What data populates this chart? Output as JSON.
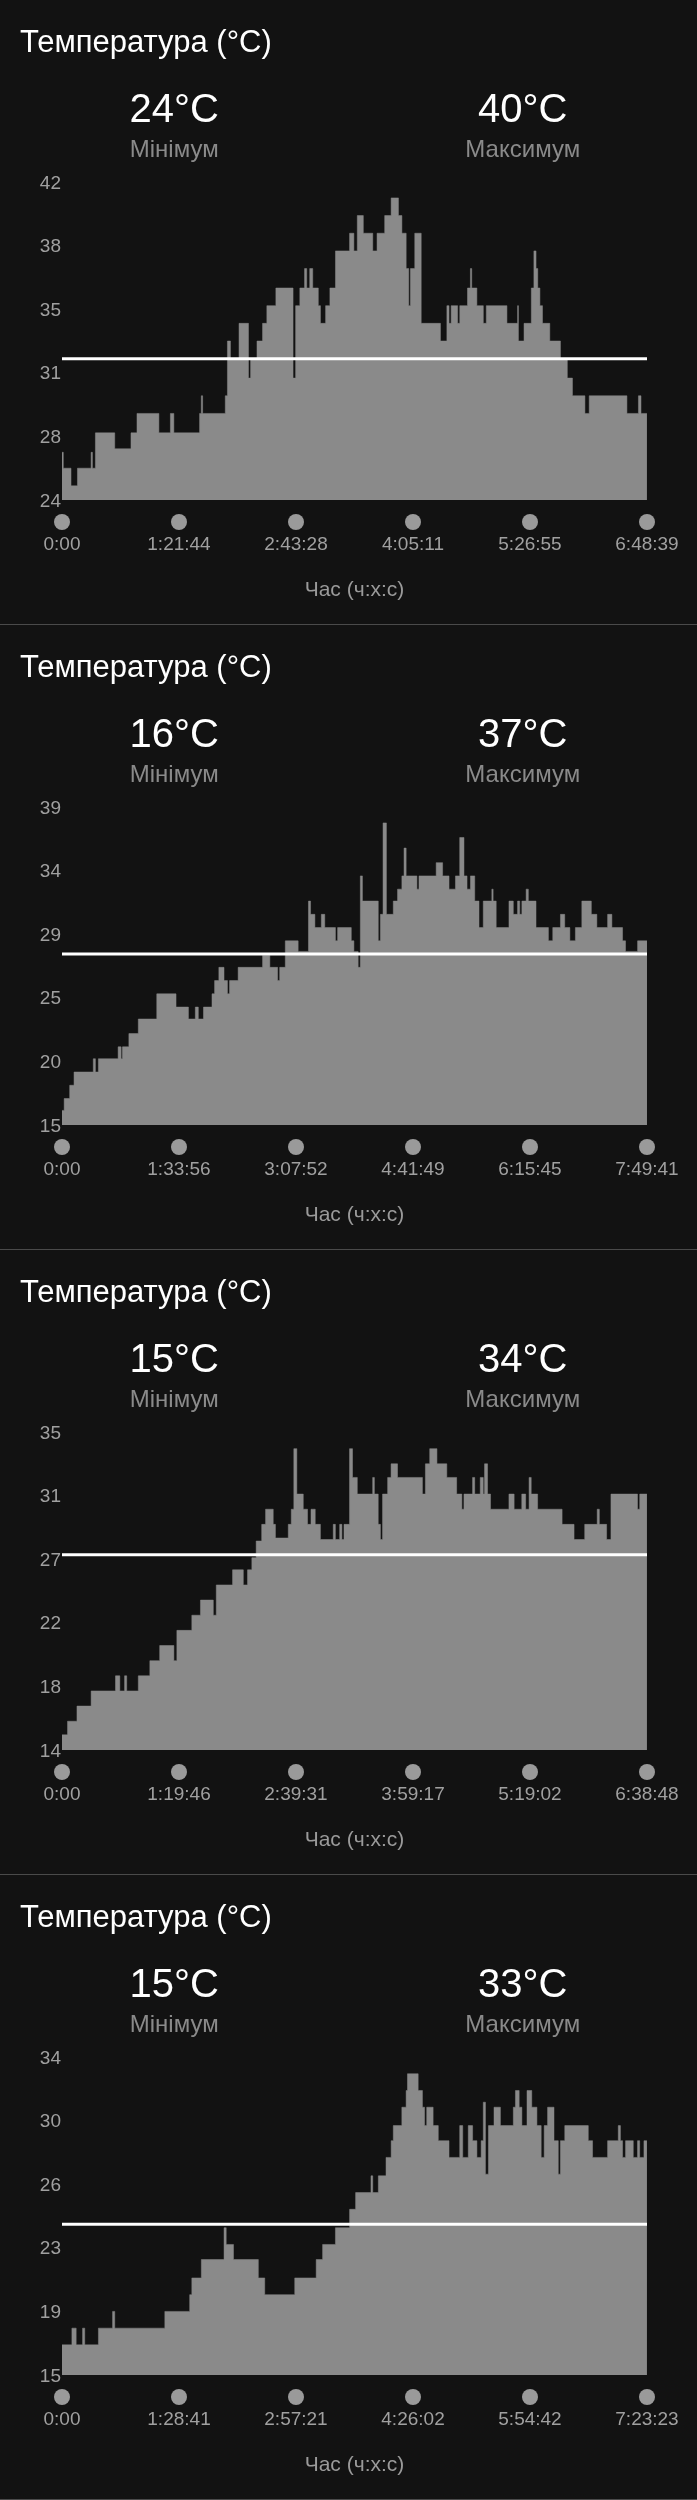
{
  "chart_data": [
    {
      "type": "area",
      "title": "Температура (°C)",
      "xlabel": "Час (ч:х:с)",
      "annotations": [
        "24°C",
        "Мінімум",
        "40°C",
        "Максимум"
      ],
      "xlim": [
        0,
        6.8108
      ],
      "xticks": [
        {
          "value": 0,
          "label": "0:00"
        },
        {
          "value": 1.3622,
          "label": "1:21:44"
        },
        {
          "value": 2.7244,
          "label": "2:43:28"
        },
        {
          "value": 4.0864,
          "label": "4:05:11"
        },
        {
          "value": 5.4486,
          "label": "5:26:55"
        },
        {
          "value": 6.8108,
          "label": "6:48:39"
        }
      ],
      "ylim": [
        24,
        42
      ],
      "yticks": [
        24,
        {
          "value": 27.6,
          "label": "28"
        },
        {
          "value": 31.2,
          "label": "31"
        },
        {
          "value": 34.8,
          "label": "35"
        },
        {
          "value": 38.4,
          "label": "38"
        },
        42
      ],
      "ref_lines": [
        {
          "axis": "y",
          "value": 32,
          "color": "#ffffff"
        }
      ],
      "series": [
        {
          "color": "#8a8a8a",
          "x": [
            0,
            0.015,
            0.015,
            0.105,
            0.105,
            0.18,
            0.18,
            0.339,
            0.339,
            0.354,
            0.354,
            0.389,
            0.389,
            0.614,
            0.614,
            0.803,
            0.803,
            0.873,
            0.873,
            1.128,
            1.128,
            1.262,
            1.262,
            1.302,
            1.302,
            1.602,
            1.602,
            1.622,
            1.622,
            1.637,
            1.637,
            1.901,
            1.901,
            1.926,
            1.926,
            1.961,
            1.961,
            2.061,
            2.061,
            2.171,
            2.171,
            2.196,
            2.196,
            2.27,
            2.27,
            2.335,
            2.335,
            2.385,
            2.385,
            2.49,
            2.49,
            2.69,
            2.69,
            2.72,
            2.72,
            2.769,
            2.769,
            2.824,
            2.824,
            2.849,
            2.849,
            2.884,
            2.884,
            2.919,
            2.919,
            2.984,
            2.984,
            3.009,
            3.009,
            3.069,
            3.069,
            3.119,
            3.119,
            3.184,
            3.184,
            3.348,
            3.348,
            3.398,
            3.398,
            3.438,
            3.438,
            3.508,
            3.508,
            3.618,
            3.618,
            3.668,
            3.668,
            3.757,
            3.757,
            3.832,
            3.832,
            3.917,
            3.917,
            3.957,
            3.957,
            4.007,
            4.007,
            4.037,
            4.037,
            4.057,
            4.057,
            4.107,
            4.107,
            4.182,
            4.182,
            4.406,
            4.406,
            4.481,
            4.481,
            4.506,
            4.506,
            4.531,
            4.531,
            4.606,
            4.606,
            4.631,
            4.631,
            4.721,
            4.721,
            4.755,
            4.755,
            4.77,
            4.77,
            4.83,
            4.83,
            4.905,
            4.905,
            4.94,
            4.94,
            5.18,
            5.18,
            5.304,
            5.304,
            5.314,
            5.314,
            5.379,
            5.379,
            5.464,
            5.464,
            5.494,
            5.494,
            5.519,
            5.519,
            5.539,
            5.539,
            5.564,
            5.564,
            5.594,
            5.594,
            5.679,
            5.679,
            5.803,
            5.803,
            5.883,
            5.883,
            5.943,
            5.943,
            6.088,
            6.088,
            6.138,
            6.138,
            6.577,
            6.577,
            6.711,
            6.711,
            6.741,
            6.741,
            6.81,
            6.81
          ],
          "values": [
            26.7,
            26.7,
            25.8,
            25.8,
            24.8,
            24.8,
            25.8,
            25.8,
            26.7,
            26.7,
            25.8,
            25.8,
            27.8,
            27.8,
            26.9,
            26.9,
            27.8,
            27.8,
            28.9,
            28.9,
            27.8,
            27.8,
            28.9,
            28.9,
            27.8,
            27.8,
            28.9,
            28.9,
            29.9,
            29.9,
            28.9,
            28.9,
            29.9,
            29.9,
            33,
            33,
            32,
            32,
            34,
            34,
            30.9,
            30.9,
            32,
            32,
            33,
            33,
            34,
            34,
            35,
            35,
            36,
            36,
            30.9,
            30.9,
            35,
            35,
            36,
            36,
            37.1,
            37.1,
            36,
            36,
            37.1,
            37.1,
            36,
            36,
            35,
            35,
            34,
            34,
            35,
            35,
            36,
            36,
            38.1,
            38.1,
            39.1,
            39.1,
            38.1,
            38.1,
            40.1,
            40.1,
            39.1,
            39.1,
            38.1,
            38.1,
            39.1,
            39.1,
            40.1,
            40.1,
            41.1,
            41.1,
            40.1,
            40.1,
            39.1,
            39.1,
            37.1,
            37.1,
            35,
            35,
            37.1,
            37.1,
            39.1,
            39.1,
            34,
            34,
            33,
            33,
            35,
            35,
            34,
            34,
            35,
            35,
            34,
            34,
            35,
            35,
            36,
            36,
            37.1,
            37.1,
            36,
            36,
            35,
            35,
            34,
            34,
            35,
            35,
            34,
            34,
            35,
            35,
            33,
            33,
            34,
            34,
            36,
            36,
            38.1,
            38.1,
            37.1,
            37.1,
            36,
            36,
            35,
            35,
            34,
            34,
            33,
            33,
            32,
            32,
            30.9,
            30.9,
            29.9,
            29.9,
            28.9,
            28.9,
            29.9,
            29.9,
            28.9,
            28.9,
            29.9,
            29.9,
            28.9,
            28.9,
            28.9
          ]
        }
      ]
    },
    {
      "type": "area",
      "title": "Температура (°C)",
      "xlabel": "Час (ч:х:с)",
      "annotations": [
        "16°C",
        "Мінімум",
        "37°C",
        "Максимум"
      ],
      "xlim": [
        0,
        7.8281
      ],
      "xticks": [
        {
          "value": 0,
          "label": "0:00"
        },
        {
          "value": 1.5656,
          "label": "1:33:56"
        },
        {
          "value": 3.1311,
          "label": "3:07:52"
        },
        {
          "value": 4.6969,
          "label": "4:41:49"
        },
        {
          "value": 6.2625,
          "label": "6:15:45"
        },
        {
          "value": 7.8281,
          "label": "7:49:41"
        }
      ],
      "ylim": [
        15,
        39
      ],
      "yticks": [
        15,
        {
          "value": 19.8,
          "label": "20"
        },
        {
          "value": 24.6,
          "label": "25"
        },
        {
          "value": 29.4,
          "label": "29"
        },
        {
          "value": 34.2,
          "label": "34"
        },
        39
      ],
      "ref_lines": [
        {
          "axis": "y",
          "value": 27.9,
          "color": "#ffffff"
        }
      ],
      "series": [
        {
          "color": "#8a8a8a",
          "x": [
            0,
            0.029,
            0.029,
            0.103,
            0.103,
            0.161,
            0.161,
            0.419,
            0.419,
            0.447,
            0.447,
            0.487,
            0.487,
            0.751,
            0.751,
            0.791,
            0.791,
            0.809,
            0.809,
            0.895,
            0.895,
            1.021,
            1.021,
            1.268,
            1.268,
            1.526,
            1.526,
            1.692,
            1.692,
            1.784,
            1.784,
            1.824,
            1.824,
            1.893,
            1.893,
            2.007,
            2.007,
            2.042,
            2.042,
            2.099,
            2.099,
            2.168,
            2.168,
            2.214,
            2.214,
            2.242,
            2.242,
            2.357,
            2.357,
            2.684,
            2.684,
            2.781,
            2.781,
            2.885,
            2.885,
            2.913,
            2.913,
            2.988,
            2.988,
            3.16,
            3.16,
            3.298,
            3.298,
            3.326,
            3.326,
            3.384,
            3.384,
            3.47,
            3.47,
            3.516,
            3.516,
            3.659,
            3.659,
            3.688,
            3.688,
            3.871,
            3.871,
            3.906,
            3.906,
            3.963,
            3.963,
            3.992,
            3.992,
            4.02,
            4.02,
            4.232,
            4.232,
            4.261,
            4.261,
            4.296,
            4.296,
            4.341,
            4.341,
            4.433,
            4.433,
            4.49,
            4.49,
            4.548,
            4.548,
            4.577,
            4.577,
            4.605,
            4.605,
            4.749,
            4.749,
            4.777,
            4.777,
            5.007,
            5.007,
            5.093,
            5.093,
            5.179,
            5.179,
            5.265,
            5.265,
            5.322,
            5.322,
            5.379,
            5.379,
            5.42,
            5.42,
            5.466,
            5.466,
            5.523,
            5.523,
            5.58,
            5.58,
            5.637,
            5.637,
            5.752,
            5.752,
            5.769,
            5.769,
            5.81,
            5.81,
            5.981,
            5.981,
            6.039,
            6.039,
            6.096,
            6.096,
            6.125,
            6.125,
            6.154,
            6.154,
            6.211,
            6.211,
            6.24,
            6.24,
            6.343,
            6.343,
            6.509,
            6.509,
            6.567,
            6.567,
            6.67,
            6.67,
            6.727,
            6.727,
            6.796,
            6.796,
            6.87,
            6.87,
            6.956,
            6.956,
            7.083,
            7.083,
            7.157,
            7.157,
            7.301,
            7.301,
            7.358,
            7.358,
            7.501,
            7.501,
            7.541,
            7.541,
            7.702,
            7.702,
            7.828,
            7.828
          ],
          "values": [
            16.1,
            16.1,
            17,
            17,
            18,
            18,
            19,
            19,
            20,
            20,
            19,
            19,
            20,
            20,
            20.9,
            20.9,
            20,
            20,
            20.9,
            20.9,
            21.9,
            21.9,
            23,
            23,
            24.9,
            24.9,
            23.9,
            23.9,
            23,
            23,
            23.9,
            23.9,
            23,
            23,
            23.9,
            23.9,
            24.9,
            24.9,
            25.9,
            25.9,
            26.9,
            26.9,
            25.9,
            25.9,
            24.9,
            24.9,
            25.9,
            25.9,
            26.9,
            26.9,
            27.8,
            27.8,
            26.9,
            26.9,
            25.9,
            25.9,
            26.9,
            26.9,
            28.9,
            28.9,
            28.1,
            28.1,
            31.9,
            31.9,
            30.9,
            30.9,
            29.9,
            29.9,
            30.9,
            30.9,
            29.9,
            29.9,
            28.9,
            28.9,
            29.9,
            29.9,
            28.9,
            28.9,
            28.1,
            28.1,
            26.9,
            26.9,
            33.8,
            33.8,
            31.9,
            31.9,
            28.9,
            28.9,
            30.9,
            30.9,
            37.8,
            37.8,
            30.9,
            30.9,
            31.9,
            31.9,
            32.8,
            32.8,
            33.8,
            33.8,
            35.9,
            35.9,
            33.8,
            33.8,
            32.8,
            32.8,
            33.8,
            33.8,
            34.8,
            34.8,
            33.8,
            33.8,
            32.8,
            32.8,
            33.8,
            33.8,
            36.7,
            36.7,
            33.8,
            33.8,
            32.8,
            32.8,
            33.8,
            33.8,
            31.9,
            31.9,
            29.9,
            29.9,
            31.9,
            31.9,
            32.8,
            32.8,
            31.9,
            31.9,
            29.9,
            29.9,
            31.9,
            31.9,
            30.9,
            30.9,
            31.9,
            31.9,
            30.9,
            30.9,
            31.9,
            31.9,
            32.8,
            32.8,
            31.9,
            31.9,
            29.9,
            29.9,
            28.9,
            28.9,
            29.9,
            29.9,
            30.9,
            30.9,
            29.9,
            29.9,
            28.9,
            28.9,
            29.9,
            29.9,
            31.9,
            31.9,
            30.9,
            30.9,
            29.9,
            29.9,
            30.9,
            30.9,
            29.9,
            29.9,
            28.9,
            28.9,
            28.1,
            28.1,
            28.9,
            28.9,
            28.9
          ]
        }
      ]
    },
    {
      "type": "area",
      "title": "Температура (°C)",
      "xlabel": "Час (ч:х:с)",
      "annotations": [
        "15°C",
        "Мінімум",
        "34°C",
        "Максимум"
      ],
      "xlim": [
        0,
        6.6467
      ],
      "xticks": [
        {
          "value": 0,
          "label": "0:00"
        },
        {
          "value": 1.3294,
          "label": "1:19:46"
        },
        {
          "value": 2.6586,
          "label": "2:39:31"
        },
        {
          "value": 3.9881,
          "label": "3:59:17"
        },
        {
          "value": 5.3172,
          "label": "5:19:02"
        },
        {
          "value": 6.6467,
          "label": "6:38:48"
        }
      ],
      "ylim": [
        14,
        35
      ],
      "yticks": [
        14,
        {
          "value": 18.2,
          "label": "18"
        },
        {
          "value": 22.4,
          "label": "22"
        },
        {
          "value": 26.6,
          "label": "27"
        },
        {
          "value": 30.8,
          "label": "31"
        },
        35
      ],
      "ref_lines": [
        {
          "axis": "y",
          "value": 26.9,
          "color": "#ffffff"
        }
      ],
      "series": [
        {
          "color": "#8a8a8a",
          "x": [
            0,
            0.063,
            0.063,
            0.17,
            0.17,
            0.331,
            0.331,
            0.608,
            0.608,
            0.657,
            0.657,
            0.711,
            0.711,
            0.735,
            0.735,
            0.867,
            0.867,
            0.998,
            0.998,
            1.11,
            1.11,
            1.271,
            1.271,
            1.305,
            1.305,
            1.475,
            1.475,
            1.573,
            1.573,
            1.719,
            1.719,
            1.753,
            1.753,
            1.938,
            1.938,
            2.06,
            2.06,
            2.108,
            2.108,
            2.157,
            2.157,
            2.206,
            2.206,
            2.269,
            2.269,
            2.313,
            2.313,
            2.4,
            2.4,
            2.425,
            2.425,
            2.571,
            2.571,
            2.605,
            2.605,
            2.634,
            2.634,
            2.668,
            2.668,
            2.741,
            2.741,
            2.79,
            2.79,
            2.829,
            2.829,
            2.877,
            2.877,
            2.936,
            2.936,
            3.082,
            3.082,
            3.106,
            3.106,
            3.155,
            3.155,
            3.18,
            3.18,
            3.204,
            3.204,
            3.267,
            3.267,
            3.301,
            3.301,
            3.355,
            3.355,
            3.53,
            3.53,
            3.549,
            3.549,
            3.593,
            3.593,
            3.618,
            3.618,
            3.642,
            3.642,
            3.7,
            3.7,
            3.739,
            3.739,
            3.812,
            3.812,
            4.095,
            4.095,
            4.129,
            4.129,
            4.178,
            4.178,
            4.26,
            4.26,
            4.372,
            4.372,
            4.484,
            4.484,
            4.543,
            4.543,
            4.567,
            4.567,
            4.665,
            4.665,
            4.689,
            4.689,
            4.752,
            4.752,
            4.786,
            4.786,
            4.801,
            4.801,
            4.835,
            4.835,
            4.869,
            4.869,
            5.078,
            5.078,
            5.137,
            5.137,
            5.224,
            5.224,
            5.268,
            5.268,
            5.307,
            5.307,
            5.331,
            5.331,
            5.404,
            5.404,
            5.682,
            5.682,
            5.818,
            5.818,
            5.939,
            5.939,
            6.081,
            6.081,
            6.105,
            6.105,
            6.188,
            6.188,
            6.237,
            6.237,
            6.539,
            6.539,
            6.564,
            6.564,
            6.646,
            6.646
          ],
          "values": [
            15,
            15,
            15.9,
            15.9,
            16.9,
            16.9,
            17.9,
            17.9,
            18.9,
            18.9,
            17.9,
            17.9,
            18.9,
            18.9,
            17.9,
            17.9,
            18.9,
            18.9,
            19.9,
            19.9,
            20.9,
            20.9,
            19.9,
            19.9,
            21.9,
            21.9,
            22.9,
            22.9,
            23.9,
            23.9,
            22.9,
            22.9,
            24.9,
            24.9,
            25.9,
            25.9,
            24.9,
            24.9,
            25.9,
            25.9,
            26.7,
            26.7,
            27.8,
            27.8,
            28.9,
            28.9,
            29.9,
            29.9,
            28.9,
            28.9,
            28,
            28,
            28.9,
            28.9,
            29.9,
            29.9,
            33.9,
            33.9,
            30.9,
            30.9,
            29.9,
            29.9,
            28.9,
            28.9,
            29.9,
            29.9,
            28.9,
            28.9,
            27.9,
            27.9,
            28.9,
            28.9,
            27.9,
            27.9,
            28.9,
            28.9,
            27.9,
            27.9,
            28.9,
            28.9,
            33.9,
            33.9,
            32,
            32,
            30.9,
            30.9,
            32,
            32,
            30.9,
            30.9,
            28.9,
            28.9,
            27.9,
            27.9,
            30.9,
            30.9,
            32,
            32,
            32.9,
            32.9,
            32,
            32,
            30.9,
            30.9,
            32.9,
            32.9,
            33.9,
            33.9,
            32.9,
            32.9,
            32,
            32,
            30.9,
            30.9,
            29.9,
            29.9,
            30.9,
            30.9,
            32,
            32,
            30.9,
            30.9,
            32,
            32,
            30.9,
            30.9,
            32.9,
            32.9,
            30.9,
            30.9,
            29.9,
            29.9,
            30.9,
            30.9,
            29.9,
            29.9,
            30.9,
            30.9,
            29.9,
            29.9,
            32,
            32,
            30.9,
            30.9,
            29.9,
            29.9,
            28.9,
            28.9,
            27.9,
            27.9,
            28.9,
            28.9,
            29.9,
            29.9,
            28.9,
            28.9,
            27.9,
            27.9,
            30.9,
            30.9,
            29.9,
            29.9,
            30.9,
            30.9,
            30.9
          ]
        }
      ]
    },
    {
      "type": "area",
      "title": "Температура (°C)",
      "xlabel": "Час (ч:х:с)",
      "annotations": [
        "15°C",
        "Мінімум",
        "33°C",
        "Максимум"
      ],
      "xlim": [
        0,
        7.3897
      ],
      "xticks": [
        {
          "value": 0,
          "label": "0:00"
        },
        {
          "value": 1.4781,
          "label": "1:28:41"
        },
        {
          "value": 2.9558,
          "label": "2:57:21"
        },
        {
          "value": 4.4339,
          "label": "4:26:02"
        },
        {
          "value": 5.9117,
          "label": "5:54:42"
        },
        {
          "value": 7.3897,
          "label": "7:23:23"
        }
      ],
      "ylim": [
        15,
        34
      ],
      "yticks": [
        15,
        {
          "value": 18.8,
          "label": "19"
        },
        {
          "value": 22.6,
          "label": "23"
        },
        {
          "value": 26.4,
          "label": "26"
        },
        {
          "value": 30.2,
          "label": "30"
        },
        34
      ],
      "ref_lines": [
        {
          "axis": "y",
          "value": 24,
          "color": "#ffffff"
        }
      ],
      "series": [
        {
          "color": "#8a8a8a",
          "x": [
            0,
            0.125,
            0.125,
            0.179,
            0.179,
            0.26,
            0.26,
            0.287,
            0.287,
            0.46,
            0.46,
            0.639,
            0.639,
            0.666,
            0.666,
            1.299,
            1.299,
            1.613,
            1.613,
            1.64,
            1.64,
            1.76,
            1.76,
            2.047,
            2.047,
            2.074,
            2.074,
            2.166,
            2.166,
            2.48,
            2.48,
            2.561,
            2.561,
            2.94,
            2.94,
            3.211,
            3.211,
            3.292,
            3.292,
            3.454,
            3.454,
            3.633,
            3.633,
            3.709,
            3.709,
            3.903,
            3.903,
            3.925,
            3.925,
            3.996,
            3.996,
            4.093,
            4.093,
            4.158,
            4.158,
            4.185,
            4.185,
            4.293,
            4.293,
            4.347,
            4.347,
            4.364,
            4.364,
            4.499,
            4.499,
            4.553,
            4.553,
            4.58,
            4.58,
            4.607,
            4.607,
            4.688,
            4.688,
            4.753,
            4.753,
            4.889,
            4.889,
            5.024,
            5.024,
            5.062,
            5.062,
            5.132,
            5.132,
            5.187,
            5.187,
            5.241,
            5.241,
            5.295,
            5.295,
            5.322,
            5.322,
            5.349,
            5.349,
            5.387,
            5.387,
            5.457,
            5.457,
            5.538,
            5.538,
            5.701,
            5.701,
            5.728,
            5.728,
            5.775,
            5.775,
            5.809,
            5.809,
            5.874,
            5.874,
            5.934,
            5.934,
            5.999,
            5.999,
            6.053,
            6.053,
            6.091,
            6.091,
            6.134,
            6.134,
            6.215,
            6.215,
            6.269,
            6.269,
            6.296,
            6.296,
            6.351,
            6.351,
            6.648,
            6.648,
            6.702,
            6.702,
            6.892,
            6.892,
            7.027,
            7.027,
            7.054,
            7.054,
            7.081,
            7.081,
            7.119,
            7.119,
            7.216,
            7.216,
            7.27,
            7.27,
            7.297,
            7.297,
            7.351,
            7.351,
            7.389,
            7.389
          ],
          "values": [
            16.8,
            16.8,
            17.8,
            17.8,
            16.8,
            16.8,
            17.8,
            17.8,
            16.8,
            16.8,
            17.8,
            17.8,
            18.8,
            18.8,
            17.8,
            17.8,
            18.8,
            18.8,
            19.8,
            19.8,
            20.8,
            20.8,
            21.9,
            21.9,
            23.8,
            23.8,
            22.8,
            22.8,
            21.9,
            21.9,
            20.8,
            20.8,
            19.8,
            19.8,
            20.8,
            20.8,
            21.9,
            21.9,
            22.8,
            22.8,
            23.8,
            23.8,
            24.9,
            24.9,
            25.9,
            25.9,
            26.9,
            26.9,
            25.9,
            25.9,
            26.9,
            26.9,
            28,
            28,
            29,
            29,
            29.9,
            29.9,
            31,
            31,
            32,
            32,
            33,
            33,
            32,
            32,
            31,
            31,
            29.9,
            29.9,
            31,
            31,
            29.9,
            29.9,
            29,
            29,
            28,
            28,
            29.9,
            29.9,
            28,
            28,
            29.9,
            29.9,
            29,
            29,
            28,
            28,
            29,
            29,
            31.3,
            31.3,
            27,
            27,
            29.9,
            29.9,
            31,
            31,
            29.9,
            29.9,
            31,
            31,
            32,
            32,
            31,
            31,
            29.9,
            29.9,
            32,
            32,
            31,
            31,
            29.9,
            29.9,
            28,
            28,
            29.9,
            29.9,
            31,
            31,
            29,
            29,
            27,
            27,
            29,
            29,
            29.9,
            29.9,
            29,
            29,
            28,
            28,
            29,
            29,
            29.9,
            29.9,
            29,
            29,
            28,
            28,
            29,
            29,
            28,
            28,
            29,
            29,
            28,
            28,
            29,
            29,
            29
          ]
        }
      ]
    }
  ]
}
